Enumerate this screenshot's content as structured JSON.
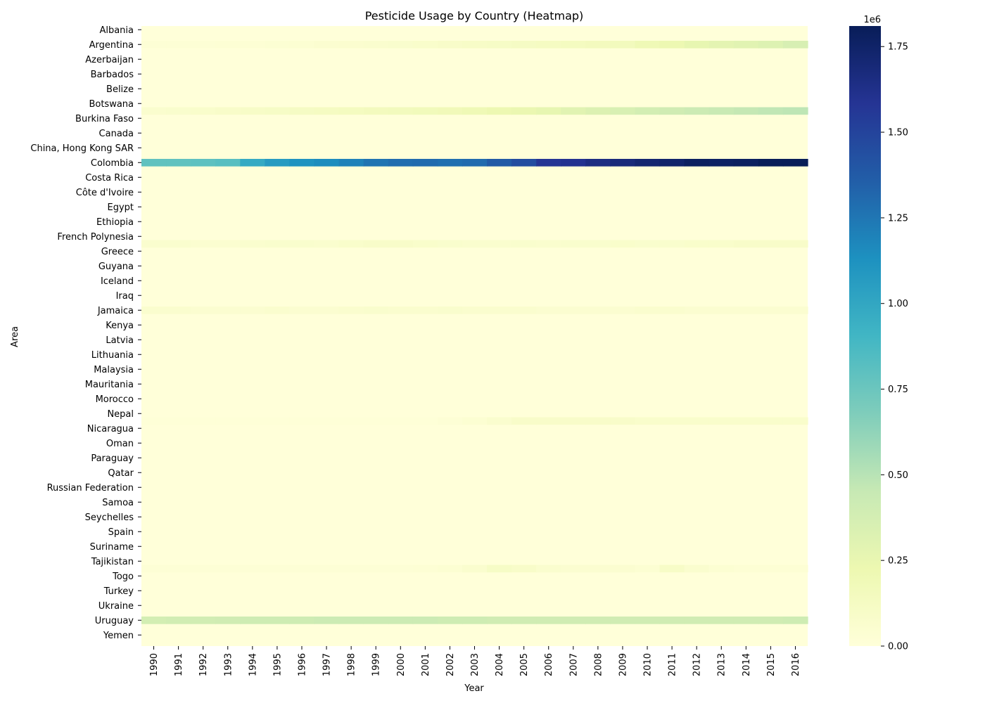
{
  "chart_data": {
    "type": "heatmap",
    "title": "Pesticide Usage by Country (Heatmap)",
    "xlabel": "Year",
    "ylabel": "Area",
    "colormap": "YlGnBu",
    "colorbar": {
      "min": 0,
      "max": 1810000,
      "ticks": [
        0,
        250000,
        500000,
        750000,
        1000000,
        1250000,
        1500000,
        1750000
      ],
      "tick_labels": [
        "0.00",
        "0.25",
        "0.50",
        "0.75",
        "1.00",
        "1.25",
        "1.50",
        "1.75"
      ],
      "multiplier": "1e6"
    },
    "x": [
      "1990",
      "1991",
      "1992",
      "1993",
      "1994",
      "1995",
      "1996",
      "1997",
      "1998",
      "1999",
      "2000",
      "2001",
      "2002",
      "2003",
      "2004",
      "2005",
      "2006",
      "2007",
      "2008",
      "2009",
      "2010",
      "2011",
      "2012",
      "2013",
      "2014",
      "2015",
      "2016"
    ],
    "row_count": 84,
    "y_tick_labels": [
      "Albania",
      "Argentina",
      "Azerbaijan",
      "Barbados",
      "Belize",
      "Botswana",
      "Burkina Faso",
      "Canada",
      "China, Hong Kong SAR",
      "Colombia",
      "Costa Rica",
      "Côte d'Ivoire",
      "Egypt",
      "Ethiopia",
      "French Polynesia",
      "Greece",
      "Guyana",
      "Iceland",
      "Iraq",
      "Jamaica",
      "Kenya",
      "Latvia",
      "Lithuania",
      "Malaysia",
      "Mauritania",
      "Morocco",
      "Nepal",
      "Nicaragua",
      "Oman",
      "Paraguay",
      "Qatar",
      "Russian Federation",
      "Samoa",
      "Seychelles",
      "Spain",
      "Suriname",
      "Tajikistan",
      "Togo",
      "Turkey",
      "Ukraine",
      "Uruguay",
      "Yemen"
    ],
    "y_tick_rows": [
      0,
      2,
      4,
      6,
      8,
      10,
      12,
      14,
      16,
      18,
      20,
      22,
      24,
      26,
      28,
      30,
      32,
      34,
      36,
      38,
      40,
      42,
      44,
      46,
      48,
      50,
      52,
      54,
      56,
      58,
      60,
      62,
      64,
      66,
      68,
      70,
      72,
      74,
      76,
      78,
      80,
      82
    ],
    "highlight_rows": [
      {
        "row": 2,
        "values": [
          20000,
          22000,
          25000,
          28000,
          30000,
          32000,
          40000,
          50000,
          55000,
          60000,
          70000,
          80000,
          90000,
          100000,
          110000,
          120000,
          130000,
          140000,
          150000,
          160000,
          200000,
          220000,
          260000,
          280000,
          300000,
          320000,
          360000
        ]
      },
      {
        "row": 11,
        "values": [
          60000,
          70000,
          80000,
          90000,
          100000,
          110000,
          120000,
          130000,
          140000,
          150000,
          160000,
          170000,
          180000,
          200000,
          220000,
          240000,
          260000,
          300000,
          330000,
          350000,
          380000,
          400000,
          420000,
          440000,
          460000,
          470000,
          480000
        ]
      },
      {
        "row": 18,
        "values": [
          790000,
          790000,
          800000,
          820000,
          980000,
          1070000,
          1120000,
          1150000,
          1200000,
          1260000,
          1290000,
          1300000,
          1280000,
          1300000,
          1380000,
          1450000,
          1580000,
          1600000,
          1650000,
          1680000,
          1720000,
          1740000,
          1780000,
          1770000,
          1780000,
          1810000,
          1810000
        ]
      },
      {
        "row": 29,
        "values": [
          60000,
          60000,
          50000,
          50000,
          60000,
          70000,
          70000,
          60000,
          80000,
          90000,
          90000,
          80000,
          70000,
          60000,
          60000,
          70000,
          60000,
          70000,
          70000,
          80000,
          70000,
          70000,
          80000,
          80000,
          90000,
          90000,
          90000
        ]
      },
      {
        "row": 38,
        "values": [
          60000,
          60000,
          50000,
          50000,
          50000,
          60000,
          50000,
          50000,
          60000,
          70000,
          60000,
          60000,
          70000,
          60000,
          60000,
          60000,
          50000,
          50000,
          50000,
          50000,
          60000,
          60000,
          50000,
          50000,
          50000,
          50000,
          50000
        ]
      },
      {
        "row": 53,
        "values": [
          10000,
          10000,
          10000,
          10000,
          10000,
          10000,
          10000,
          10000,
          10000,
          10000,
          10000,
          10000,
          20000,
          40000,
          60000,
          90000,
          90000,
          90000,
          90000,
          90000,
          80000,
          80000,
          80000,
          80000,
          80000,
          80000,
          80000
        ]
      },
      {
        "row": 73,
        "values": [
          20000,
          20000,
          20000,
          20000,
          20000,
          20000,
          20000,
          20000,
          20000,
          20000,
          20000,
          30000,
          40000,
          60000,
          110000,
          90000,
          60000,
          50000,
          50000,
          50000,
          40000,
          100000,
          60000,
          40000,
          30000,
          30000,
          30000
        ]
      },
      {
        "row": 80,
        "values": [
          380000,
          390000,
          390000,
          400000,
          410000,
          410000,
          410000,
          420000,
          420000,
          420000,
          420000,
          420000,
          410000,
          410000,
          400000,
          400000,
          400000,
          400000,
          400000,
          400000,
          400000,
          400000,
          400000,
          400000,
          400000,
          400000,
          410000
        ]
      }
    ]
  }
}
